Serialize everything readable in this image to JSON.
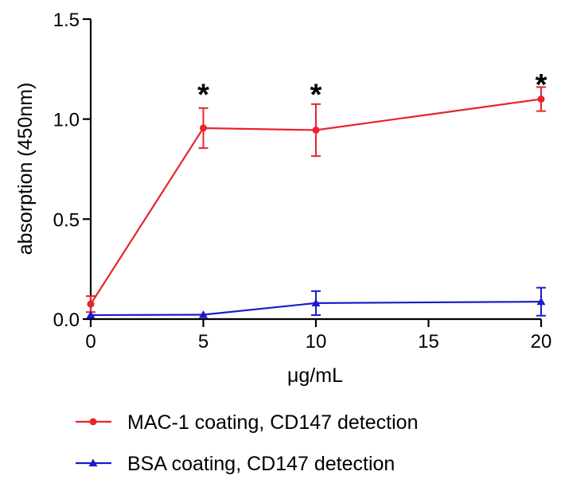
{
  "chart_data": {
    "type": "line",
    "title": "",
    "xlabel": "μg/mL",
    "ylabel": "absorption (450nm)",
    "xlim": [
      0,
      20
    ],
    "ylim": [
      0,
      1.5
    ],
    "x_ticks": [
      0,
      5,
      10,
      15,
      20
    ],
    "x_tick_labels": [
      "0",
      "5",
      "10",
      "15",
      "20"
    ],
    "y_ticks": [
      0,
      0.5,
      1.0,
      1.5
    ],
    "y_tick_labels": [
      "0.0",
      "0.5",
      "1.0",
      "1.5"
    ],
    "grid": false,
    "legend_position": "bottom",
    "series": [
      {
        "name": "MAC-1 coating, CD147 detection",
        "color": "#e8242a",
        "marker": "circle",
        "x": [
          0,
          5,
          10,
          20
        ],
        "y": [
          0.075,
          0.955,
          0.945,
          1.1
        ],
        "error": [
          0.04,
          0.1,
          0.13,
          0.06
        ]
      },
      {
        "name": "BSA coating, CD147 detection",
        "color": "#1c1ccc",
        "marker": "triangle",
        "x": [
          0,
          5,
          10,
          20
        ],
        "y": [
          0.02,
          0.022,
          0.08,
          0.087
        ],
        "error": [
          0,
          0,
          0.06,
          0.07
        ]
      }
    ],
    "annotations": [
      {
        "text": "*",
        "x": 5,
        "y": 1.12
      },
      {
        "text": "*",
        "x": 10,
        "y": 1.12
      },
      {
        "text": "*",
        "x": 20,
        "y": 1.17
      }
    ]
  }
}
